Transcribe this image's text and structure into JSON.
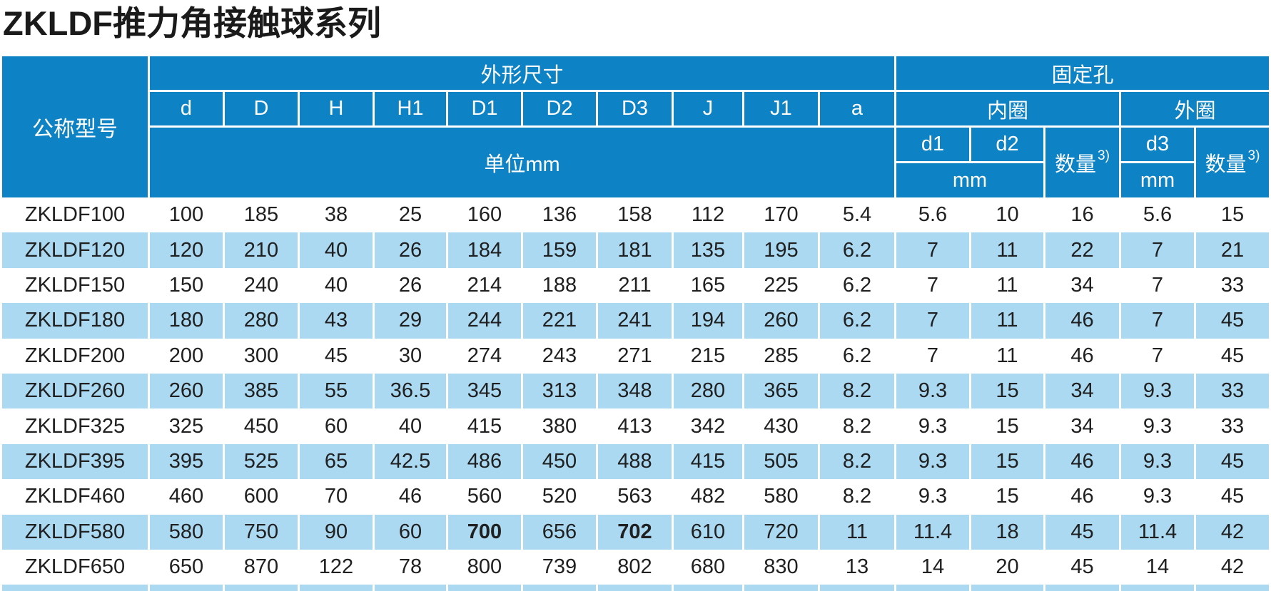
{
  "title": "ZKLDF推力角接触球系列",
  "colors": {
    "header_blue": "#0d82c4",
    "row_blue": "#abd9f2",
    "text": "#202020"
  },
  "table": {
    "header": {
      "model_col": "公称型号",
      "dims_group": "外形尺寸",
      "dims_cols": [
        "d",
        "D",
        "H",
        "H1",
        "D1",
        "D2",
        "D3",
        "J",
        "J1",
        "a"
      ],
      "dims_unit": "单位mm",
      "holes_group": "固定孔",
      "inner_ring": "内圈",
      "outer_ring": "外圈",
      "inner_d1": "d1",
      "inner_d2": "d2",
      "outer_d3": "d3",
      "qty_label": "数量",
      "qty_sup": "3)",
      "mm_inner": "mm",
      "mm_outer": "mm"
    },
    "rows": [
      {
        "model": "ZKLDF100",
        "values": [
          "100",
          "185",
          "38",
          "25",
          "160",
          "136",
          "158",
          "112",
          "170",
          "5.4",
          "5.6",
          "10",
          "16",
          "5.6",
          "15"
        ]
      },
      {
        "model": "ZKLDF120",
        "values": [
          "120",
          "210",
          "40",
          "26",
          "184",
          "159",
          "181",
          "135",
          "195",
          "6.2",
          "7",
          "11",
          "22",
          "7",
          "21"
        ]
      },
      {
        "model": "ZKLDF150",
        "values": [
          "150",
          "240",
          "40",
          "26",
          "214",
          "188",
          "211",
          "165",
          "225",
          "6.2",
          "7",
          "11",
          "34",
          "7",
          "33"
        ]
      },
      {
        "model": "ZKLDF180",
        "values": [
          "180",
          "280",
          "43",
          "29",
          "244",
          "221",
          "241",
          "194",
          "260",
          "6.2",
          "7",
          "11",
          "46",
          "7",
          "45"
        ]
      },
      {
        "model": "ZKLDF200",
        "values": [
          "200",
          "300",
          "45",
          "30",
          "274",
          "243",
          "271",
          "215",
          "285",
          "6.2",
          "7",
          "11",
          "46",
          "7",
          "45"
        ]
      },
      {
        "model": "ZKLDF260",
        "values": [
          "260",
          "385",
          "55",
          "36.5",
          "345",
          "313",
          "348",
          "280",
          "365",
          "8.2",
          "9.3",
          "15",
          "34",
          "9.3",
          "33"
        ]
      },
      {
        "model": "ZKLDF325",
        "values": [
          "325",
          "450",
          "60",
          "40",
          "415",
          "380",
          "413",
          "342",
          "430",
          "8.2",
          "9.3",
          "15",
          "34",
          "9.3",
          "33"
        ]
      },
      {
        "model": "ZKLDF395",
        "values": [
          "395",
          "525",
          "65",
          "42.5",
          "486",
          "450",
          "488",
          "415",
          "505",
          "8.2",
          "9.3",
          "15",
          "46",
          "9.3",
          "45"
        ]
      },
      {
        "model": "ZKLDF460",
        "values": [
          "460",
          "600",
          "70",
          "46",
          "560",
          "520",
          "563",
          "482",
          "580",
          "8.2",
          "9.3",
          "15",
          "46",
          "9.3",
          "45"
        ]
      },
      {
        "model": "ZKLDF580",
        "values": [
          "580",
          "750",
          "90",
          "60",
          "700",
          "656",
          "702",
          "610",
          "720",
          "11",
          "11.4",
          "18",
          "45",
          "11.4",
          "42"
        ],
        "bold": [
          4,
          6
        ]
      },
      {
        "model": "ZKLDF650",
        "values": [
          "650",
          "870",
          "122",
          "78",
          "800",
          "739",
          "802",
          "680",
          "830",
          "13",
          "14",
          "20",
          "45",
          "14",
          "42"
        ]
      }
    ]
  }
}
